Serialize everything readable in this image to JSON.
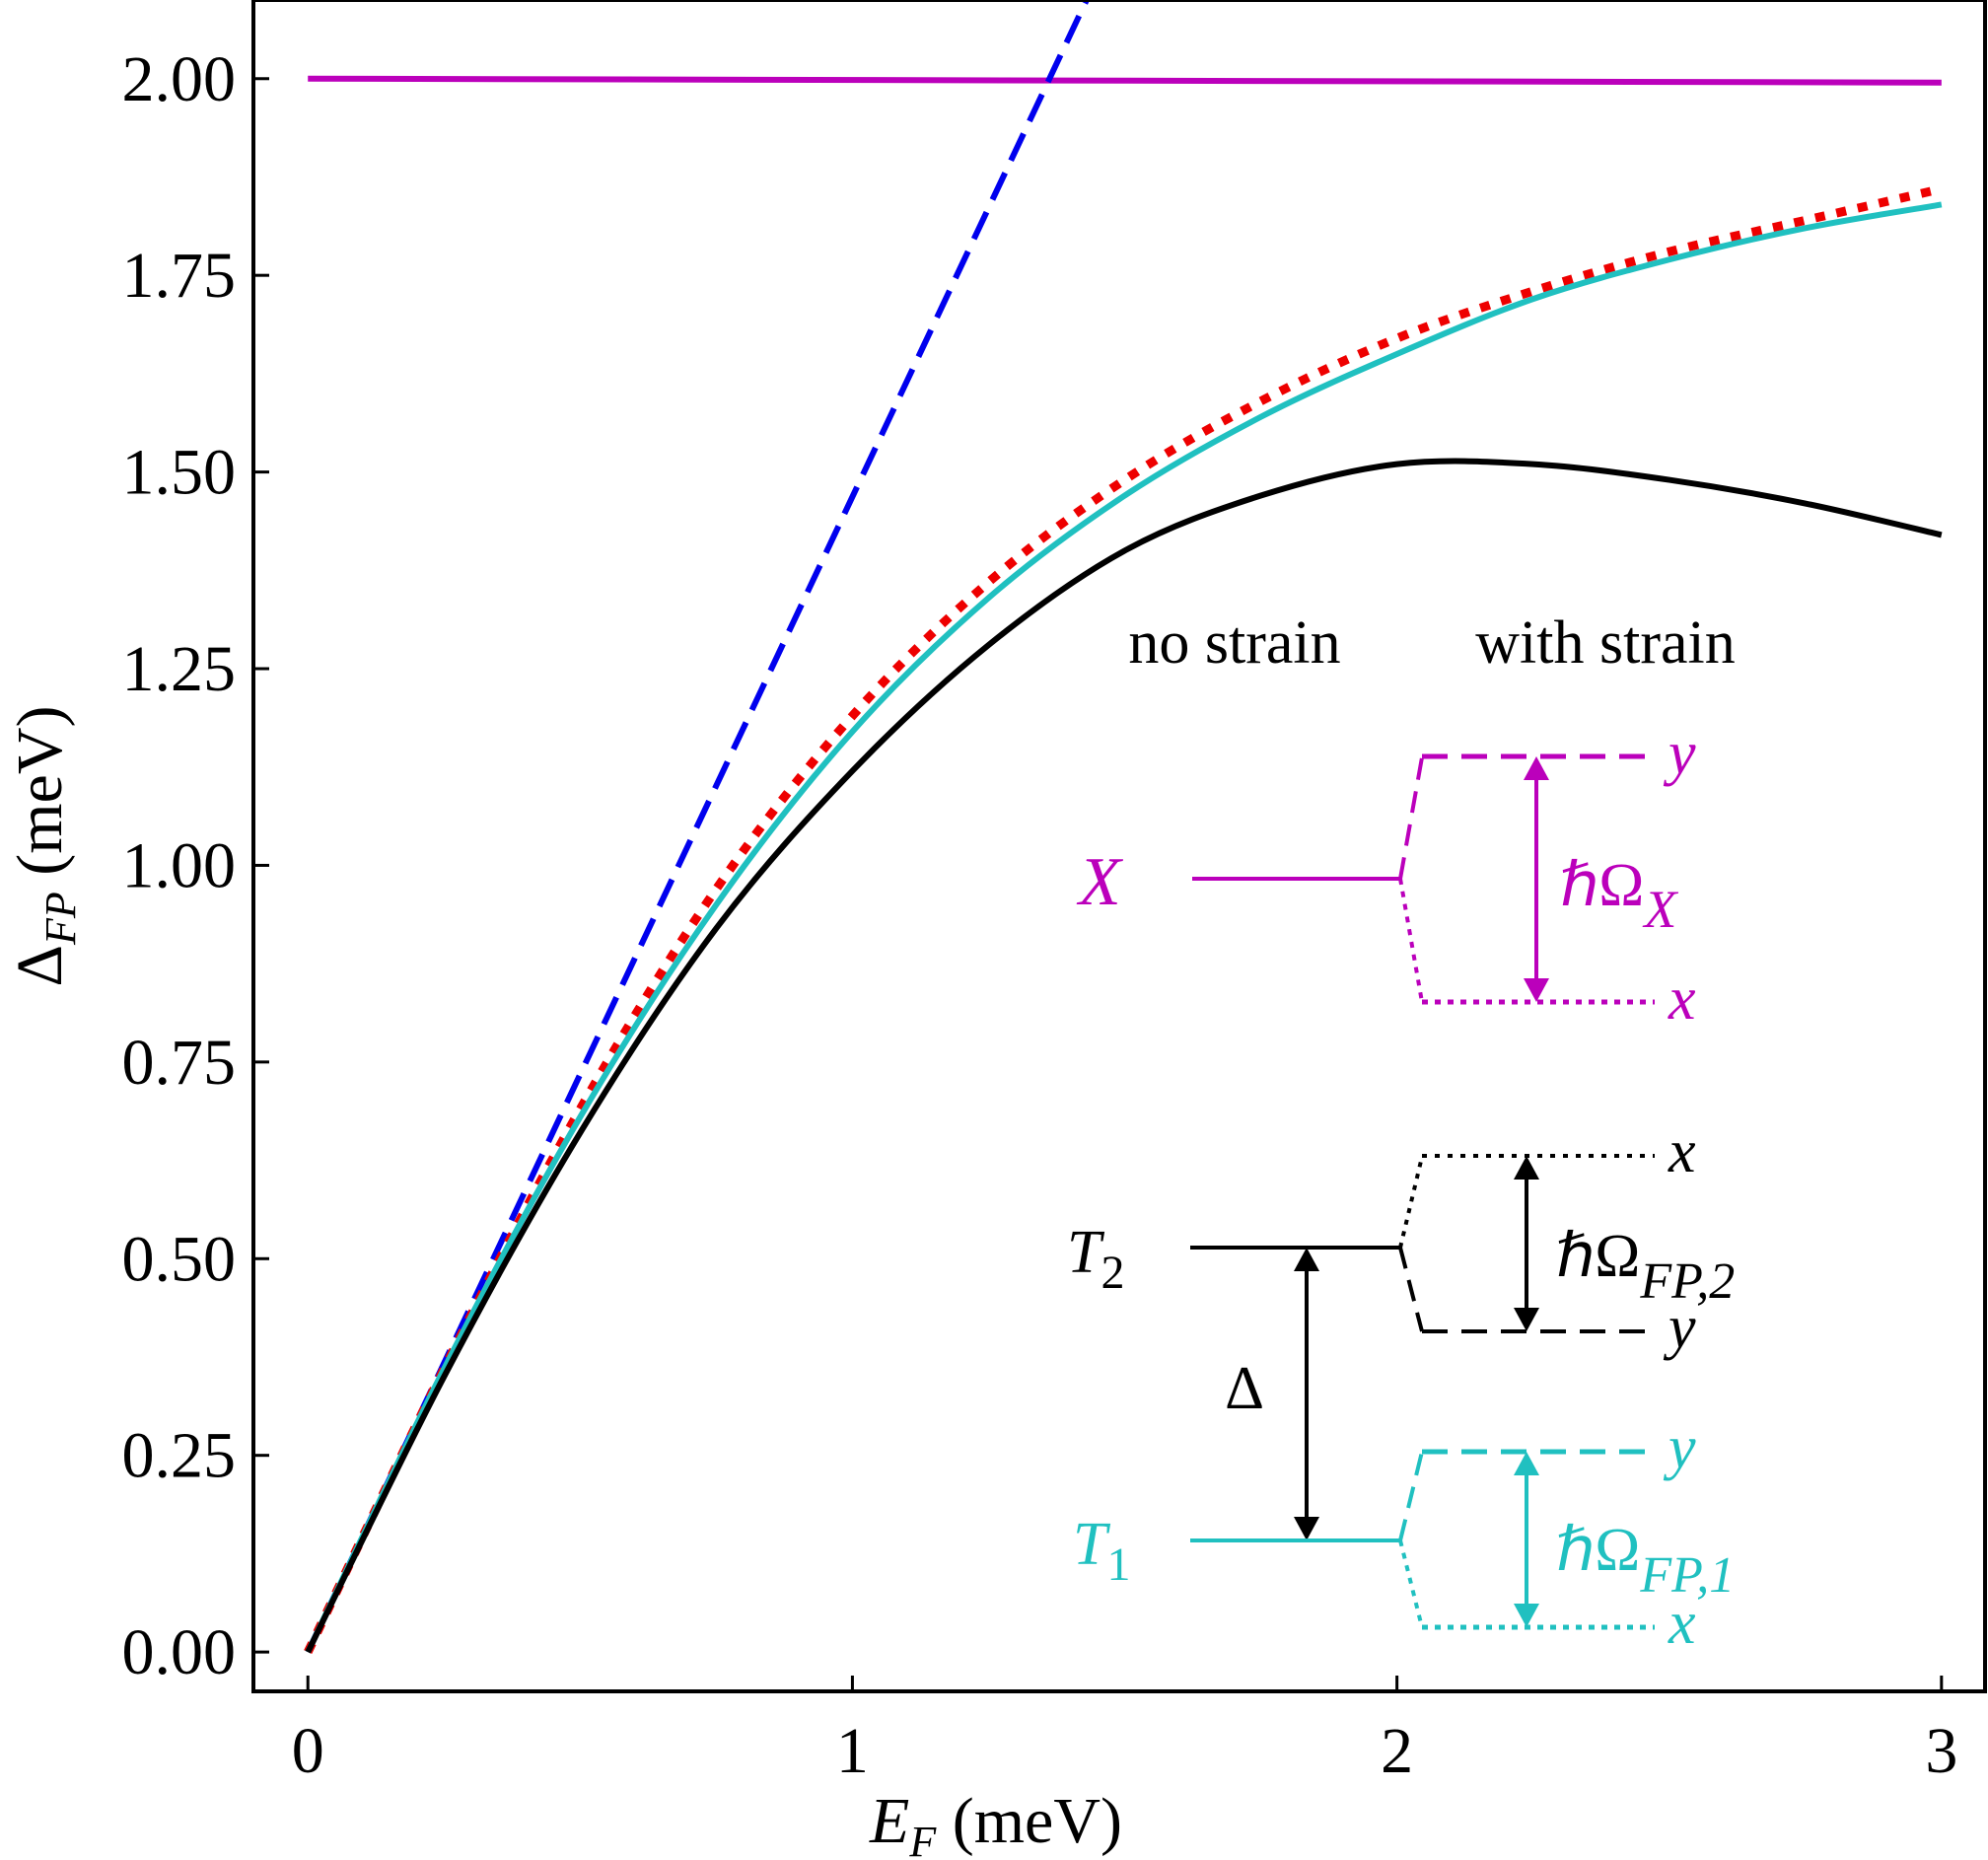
{
  "chart_data": {
    "type": "line",
    "xlabel": "E_F (meV)",
    "ylabel": "Δ_FP (meV)",
    "xlim": [
      -0.1,
      3.08
    ],
    "ylim": [
      -0.05,
      2.1
    ],
    "xticks": [
      0,
      1,
      2,
      3
    ],
    "yticks": [
      0.0,
      0.25,
      0.5,
      0.75,
      1.0,
      1.25,
      1.5,
      1.75,
      2.0
    ],
    "xtick_labels": [
      "0",
      "1",
      "2",
      "3"
    ],
    "ytick_labels": [
      "0.00",
      "0.25",
      "0.50",
      "0.75",
      "1.00",
      "1.25",
      "1.50",
      "1.75",
      "2.00"
    ],
    "grid": false,
    "series": [
      {
        "color": "#bb00bb",
        "style": "solid",
        "x": [
          0,
          3
        ],
        "y": [
          2.0,
          1.995
        ]
      },
      {
        "color": "#0000ee",
        "style": "dashed",
        "x": [
          0,
          1.43
        ],
        "y": [
          0,
          2.1
        ]
      },
      {
        "color": "#ee0000",
        "style": "dotted",
        "x": [
          0,
          0.25,
          0.5,
          0.75,
          1.0,
          1.25,
          1.5,
          1.75,
          2.0,
          2.25,
          2.5,
          2.75,
          3.0
        ],
        "y": [
          0,
          0.36,
          0.69,
          0.97,
          1.19,
          1.36,
          1.49,
          1.59,
          1.67,
          1.73,
          1.78,
          1.82,
          1.86
        ]
      },
      {
        "color": "#20c0c0",
        "style": "solid",
        "x": [
          0,
          0.25,
          0.5,
          0.75,
          1.0,
          1.25,
          1.5,
          1.75,
          2.0,
          2.25,
          2.5,
          2.75,
          3.0
        ],
        "y": [
          0,
          0.36,
          0.68,
          0.95,
          1.17,
          1.34,
          1.47,
          1.57,
          1.65,
          1.72,
          1.77,
          1.81,
          1.84
        ]
      },
      {
        "color": "#000000",
        "style": "solid",
        "x": [
          0,
          0.25,
          0.5,
          0.75,
          1.0,
          1.25,
          1.5,
          1.75,
          2.0,
          2.25,
          2.5,
          2.75,
          3.0
        ],
        "y": [
          0,
          0.35,
          0.66,
          0.92,
          1.12,
          1.28,
          1.4,
          1.47,
          1.51,
          1.51,
          1.49,
          1.46,
          1.42
        ]
      }
    ],
    "annotations": {
      "header_left": "no strain",
      "header_right": "with strain",
      "X": "X",
      "hOmegaX_base": "ℏΩ",
      "hOmegaX_sub": "X",
      "T2_base": "T",
      "T2_sub": "2",
      "T1_base": "T",
      "T1_sub": "1",
      "Delta": "Δ",
      "hOmegaFP2_base": "ℏΩ",
      "hOmegaFP2_sub": "FP,2",
      "hOmegaFP1_base": "ℏΩ",
      "hOmegaFP1_sub": "FP,1",
      "x_label": "x",
      "y_label": "y"
    }
  },
  "colors": {
    "magenta": "#bb00bb",
    "blue": "#0000ee",
    "red": "#ee0000",
    "teal": "#20c0c0",
    "black": "#000000"
  }
}
